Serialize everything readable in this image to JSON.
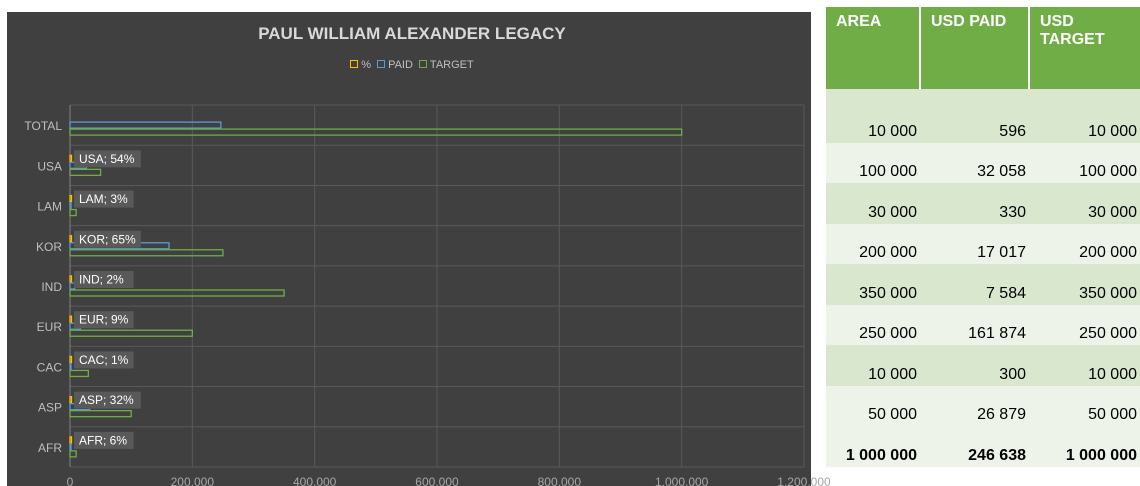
{
  "chart_data": {
    "type": "bar",
    "orientation": "horizontal",
    "title": "PAUL WILLIAM ALEXANDER LEGACY",
    "categories": [
      "TOTAL",
      "USA",
      "LAM",
      "KOR",
      "IND",
      "EUR",
      "CAC",
      "ASP",
      "AFR"
    ],
    "series": [
      {
        "name": "%",
        "values": [
          0,
          54,
          3,
          65,
          2,
          9,
          1,
          32,
          6
        ],
        "color": "#ffc000"
      },
      {
        "name": "PAID",
        "values": [
          246638,
          26879,
          300,
          161874,
          7584,
          17017,
          330,
          32058,
          596
        ],
        "color": "#5b9bd5"
      },
      {
        "name": "TARGET",
        "values": [
          1000000,
          50000,
          10000,
          250000,
          350000,
          200000,
          30000,
          100000,
          10000
        ],
        "color": "#70ad47"
      }
    ],
    "data_labels": [
      "",
      "USA; 54%",
      "LAM; 3%",
      "KOR; 65%",
      "IND; 2%",
      "EUR; 9%",
      "CAC; 1%",
      "ASP; 32%",
      "AFR; 6%"
    ],
    "xlim": [
      0,
      1200000
    ],
    "xticks": [
      0,
      200000,
      400000,
      600000,
      800000,
      1000000,
      1200000
    ],
    "xtick_labels": [
      "0",
      "200,000",
      "400,000",
      "600,000",
      "800,000",
      "1,000,000",
      "1,200,000"
    ],
    "xlabel": "",
    "ylabel": "",
    "grid": true,
    "legend_position": "top"
  },
  "table": {
    "headers": [
      "AREA",
      "USD PAID",
      "USD TARGET"
    ],
    "rows": [
      [
        "10 000",
        "596",
        "10 000"
      ],
      [
        "100 000",
        "32 058",
        "100 000"
      ],
      [
        "30 000",
        "330",
        "30 000"
      ],
      [
        "200 000",
        "17 017",
        "200 000"
      ],
      [
        "350 000",
        "7 584",
        "350 000"
      ],
      [
        "250 000",
        "161 874",
        "250 000"
      ],
      [
        "10 000",
        "300",
        "10 000"
      ],
      [
        "50 000",
        "26 879",
        "50 000"
      ]
    ],
    "total": [
      "1 000 000",
      "246 638",
      "1 000 000"
    ]
  }
}
